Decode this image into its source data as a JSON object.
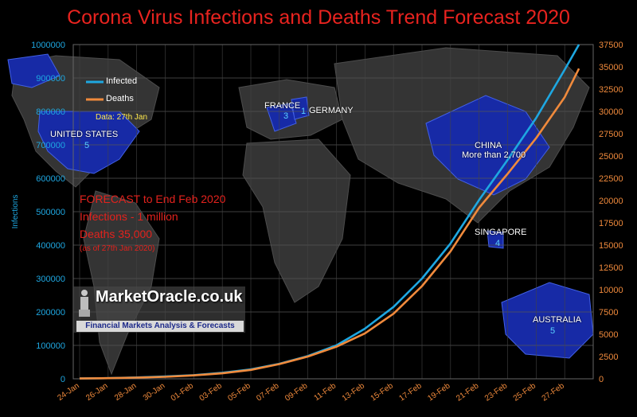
{
  "chart_data": {
    "type": "line",
    "title": "Corona Virus Infections and Deaths Trend Forecast 2020",
    "ylabel": "Infections",
    "ylim": [
      0,
      1000000
    ],
    "y2lim": [
      0,
      37500
    ],
    "yticks": [
      "0",
      "100000",
      "200000",
      "300000",
      "400000",
      "500000",
      "600000",
      "700000",
      "800000",
      "900000",
      "1000000"
    ],
    "y2ticks": [
      "0",
      "2500",
      "5000",
      "7500",
      "10000",
      "12500",
      "15000",
      "17500",
      "20000",
      "22500",
      "25000",
      "27500",
      "30000",
      "32500",
      "35000",
      "37500"
    ],
    "xticks": [
      "24-Jan",
      "26-Jan",
      "28-Jan",
      "30-Jan",
      "01-Feb",
      "03-Feb",
      "05-Feb",
      "07-Feb",
      "09-Feb",
      "11-Feb",
      "13-Feb",
      "15-Feb",
      "17-Feb",
      "19-Feb",
      "21-Feb",
      "23-Feb",
      "25-Feb",
      "27-Feb"
    ],
    "x_days": [
      0,
      2,
      4,
      6,
      8,
      10,
      12,
      14,
      16,
      18,
      20,
      22,
      24,
      26,
      28,
      30,
      32,
      34,
      35
    ],
    "series": [
      {
        "name": "Infected",
        "axis": "left",
        "color": "#1ea7e1",
        "values": [
          1000,
          2000,
          4000,
          7000,
          11000,
          18000,
          28000,
          45000,
          68000,
          100000,
          150000,
          215000,
          300000,
          405000,
          535000,
          655000,
          780000,
          925000,
          1000000
        ]
      },
      {
        "name": "Deaths",
        "axis": "right",
        "color": "#f08a3c",
        "values": [
          40,
          70,
          130,
          220,
          380,
          620,
          1000,
          1650,
          2500,
          3600,
          5100,
          7300,
          10400,
          14300,
          19200,
          23000,
          27000,
          31600,
          34800
        ]
      }
    ],
    "legend": "top-left",
    "grid": true
  },
  "forecast_box": {
    "line1": "FORECAST to End Feb 2020",
    "line2": "Infections - 1 million",
    "line3": "Deaths 35,000",
    "line4": "(as of 27th Jan 2020)"
  },
  "data_note": "Data: 27th Jan",
  "map_labels": {
    "us": "UNITED STATES",
    "us_count": "5",
    "france": "FRANCE",
    "france_count": "3",
    "germany": "GERMANY",
    "germany_count": "1",
    "china": "CHINA",
    "china_count": "More than 2,700",
    "singapore": "SINGAPORE",
    "singapore_count": "4",
    "australia": "AUSTRALIA",
    "australia_count": "5"
  },
  "logo": {
    "name": "MarketOracle.co.uk",
    "tagline": "Financial Markets Analysis & Forecasts"
  },
  "colors": {
    "infected": "#1ea7e1",
    "deaths": "#f08a3c",
    "title": "#e8231f",
    "left_axis": "#1ea7e1",
    "right_axis": "#f08a3c",
    "map_highlight": "#1a2fb8"
  }
}
